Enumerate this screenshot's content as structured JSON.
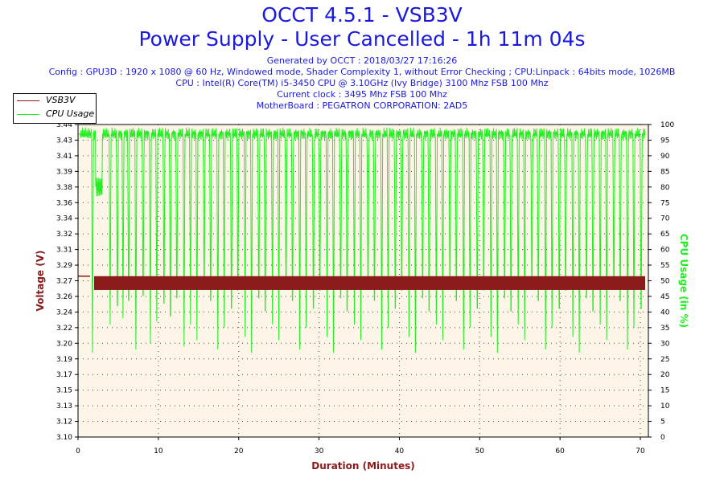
{
  "header": {
    "title": "OCCT 4.5.1 - VSB3V",
    "subtitle": "Power Supply - User Cancelled - 1h 11m 04s",
    "generated": "Generated by OCCT : 2018/03/27 17:16:26",
    "config": "Config : GPU3D : 1920 x 1080 @ 60 Hz, Windowed mode, Shader Complexity 1, without Error Checking ; CPU:Linpack : 64bits mode, 1026MB",
    "cpu": "CPU : Intel(R) Core(TM) i5-3450 CPU @ 3.10GHz (Ivy Bridge) 3100 Mhz FSB 100 Mhz",
    "clock": "Current clock : 3495 Mhz FSB 100 Mhz",
    "motherboard": "MotherBoard : PEGATRON CORPORATION: 2AD5"
  },
  "colors": {
    "title": "#1a1adc",
    "voltage": "#8b1a1a",
    "cpu": "#22ee22",
    "plot_bg": "#fdf6e8"
  },
  "chart_data": {
    "type": "line",
    "xlabel": "Duration (Minutes)",
    "ylabel_left": "Voltage (V)",
    "ylabel_right": "CPU Usage (in %)",
    "xlim": [
      0,
      71
    ],
    "ylim_left": [
      3.1,
      3.44
    ],
    "ylim_right": [
      0,
      100
    ],
    "x_ticks": [
      0,
      10,
      20,
      30,
      40,
      50,
      60,
      70
    ],
    "y_left_ticks": [
      "3.10",
      "3.12",
      "3.13",
      "3.15",
      "3.17",
      "3.19",
      "3.20",
      "3.22",
      "3.24",
      "3.26",
      "3.27",
      "3.29",
      "3.31",
      "3.32",
      "3.34",
      "3.36",
      "3.38",
      "3.39",
      "3.41",
      "3.43",
      "3.44"
    ],
    "y_right_ticks": [
      0,
      5,
      10,
      15,
      20,
      25,
      30,
      35,
      40,
      45,
      50,
      55,
      60,
      65,
      70,
      75,
      80,
      85,
      90,
      95,
      100
    ],
    "grid": true,
    "legend_position": "top-left",
    "series": [
      {
        "name": "VSB3V",
        "axis": "left",
        "baseline": 3.275,
        "band": [
          3.26,
          3.275
        ],
        "x": [
          0,
          1.5,
          2.0,
          5,
          10,
          20,
          30,
          40,
          50,
          60,
          70,
          71
        ],
        "values": [
          3.275,
          3.275,
          3.268,
          3.268,
          3.268,
          3.268,
          3.268,
          3.268,
          3.268,
          3.268,
          3.268,
          3.268
        ]
      },
      {
        "name": "CPU Usage",
        "axis": "right",
        "baseline": 97,
        "dips_x": [
          1.8,
          2.3,
          2.9,
          4.0,
          4.9,
          5.6,
          6.3,
          7.2,
          8.1,
          9.0,
          9.8,
          10.7,
          11.5,
          12.3,
          13.2,
          14.0,
          14.8,
          15.7,
          16.5,
          17.4,
          18.2,
          19.1,
          19.9,
          20.8,
          21.6,
          22.5,
          23.3,
          24.2,
          25.0,
          25.9,
          26.7,
          27.6,
          28.4,
          29.3,
          30.1,
          31.0,
          31.8,
          32.7,
          33.5,
          34.4,
          35.2,
          36.1,
          36.9,
          37.8,
          38.6,
          39.5,
          40.3,
          41.2,
          42.0,
          42.9,
          43.7,
          44.6,
          45.4,
          46.3,
          47.1,
          48.0,
          48.8,
          49.7,
          50.5,
          51.4,
          52.2,
          53.1,
          53.9,
          54.8,
          55.6,
          56.5,
          57.3,
          58.2,
          59.0,
          59.9,
          60.7,
          61.6,
          62.4,
          63.3,
          64.1,
          65.0,
          65.8,
          66.7,
          67.5,
          68.4,
          69.2,
          70.1
        ],
        "dips_min": 27,
        "early_plateau": {
          "x": [
            2.2,
            3.0
          ],
          "value": 80
        }
      }
    ]
  }
}
